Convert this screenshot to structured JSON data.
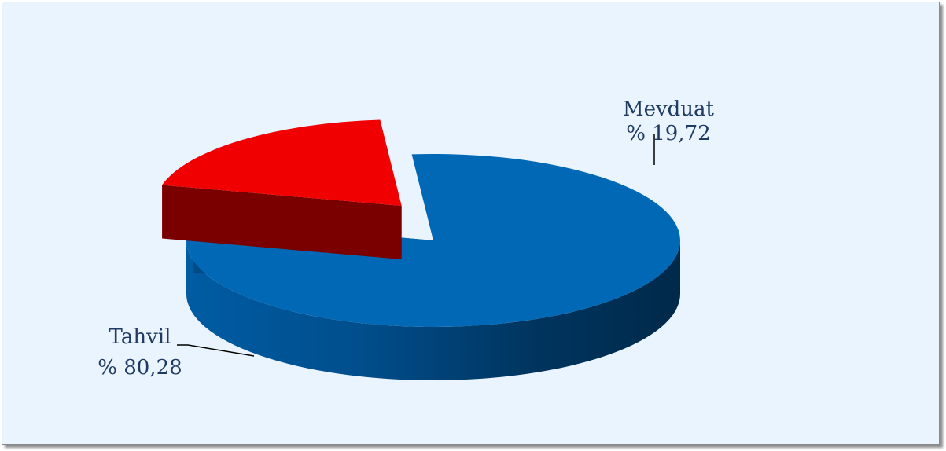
{
  "chart_data": {
    "type": "pie",
    "style": "3d-exploded",
    "slices": [
      {
        "label": "Tahvil",
        "value_text": "% 80,28",
        "value": 80.28,
        "color": "#0068b4",
        "shade": "#003a66"
      },
      {
        "label": "Mevduat",
        "value_text": "% 19,72",
        "value": 19.72,
        "color": "#f00000",
        "shade": "#6e0000"
      }
    ]
  }
}
